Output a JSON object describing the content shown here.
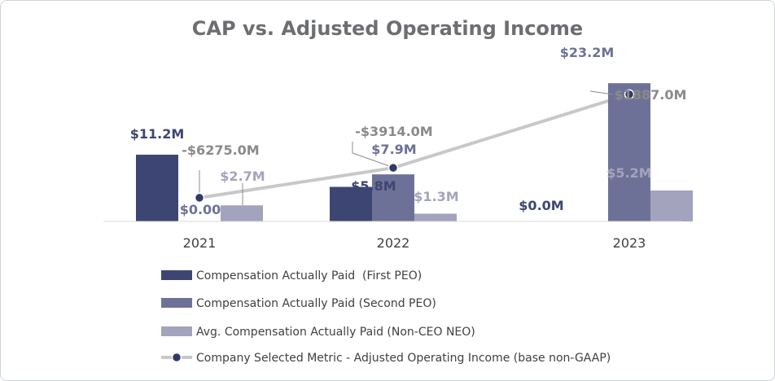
{
  "chart_data": {
    "type": "bar",
    "title": "CAP vs. Adjusted Operating Income",
    "categories": [
      "2021",
      "2022",
      "2023"
    ],
    "y_unit": "$M",
    "series": [
      {
        "name": "Compensation Actually Paid  (First PEO)",
        "kind": "bar",
        "color": "#3d4673",
        "values": [
          11.2,
          5.8,
          0.0
        ],
        "labels": [
          "$11.2M",
          "$5.8M",
          "$0.0M"
        ]
      },
      {
        "name": "Compensation Actually Paid (Second PEO)",
        "kind": "bar",
        "color": "#6e7197",
        "values": [
          0.0,
          7.9,
          23.2
        ],
        "labels": [
          "$0.00",
          "$7.9M",
          "$23.2M"
        ]
      },
      {
        "name": "Avg. Compensation Actually Paid (Non-CEO NEO)",
        "kind": "bar",
        "color": "#a4a3be",
        "values": [
          2.7,
          1.3,
          5.2
        ],
        "labels": [
          "$2.7M",
          "$1.3M",
          "$5.2M"
        ]
      },
      {
        "name": "Company Selected Metric - Adjusted Operating Income (base non-GAAP)",
        "kind": "line",
        "color": "#c8c8c8",
        "marker_color": "#2f3a66",
        "values": [
          -6275.0,
          -3914.0,
          1887.0
        ],
        "labels": [
          "-$6275.0M",
          "-$3914.0M",
          "$1887.0M"
        ]
      }
    ],
    "ylim_bars": [
      0,
      25
    ],
    "ylim_line": [
      -7500,
      2200
    ],
    "grid": false,
    "legend": "bottom"
  }
}
